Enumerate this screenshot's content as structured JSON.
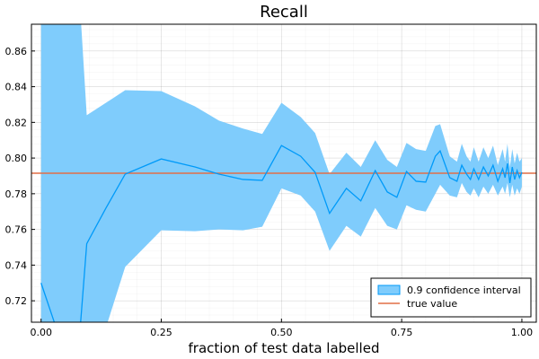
{
  "chart_data": {
    "type": "line",
    "title": "Recall",
    "xlabel": "fraction of test data labelled",
    "ylabel": "",
    "xlim": [
      -0.02,
      1.03
    ],
    "ylim": [
      0.708,
      0.875
    ],
    "xticks": [
      0.0,
      0.25,
      0.5,
      0.75,
      1.0
    ],
    "xtick_labels": [
      "0.00",
      "0.25",
      "0.50",
      "0.75",
      "1.00"
    ],
    "yticks": [
      0.72,
      0.74,
      0.76,
      0.78,
      0.8,
      0.82,
      0.84,
      0.86
    ],
    "ytick_labels": [
      "0.72",
      "0.74",
      "0.76",
      "0.78",
      "0.80",
      "0.82",
      "0.84",
      "0.86"
    ],
    "grid": true,
    "legend_position": "bottom-right",
    "series": [
      {
        "name": "0.9 confidence interval",
        "kind": "line_with_band",
        "color": "#009AF9",
        "band_color": "#7FCCFC",
        "x": [
          0.0,
          0.05,
          0.08,
          0.095,
          0.135,
          0.175,
          0.25,
          0.32,
          0.37,
          0.42,
          0.46,
          0.5,
          0.54,
          0.57,
          0.6,
          0.635,
          0.665,
          0.695,
          0.72,
          0.74,
          0.76,
          0.78,
          0.8,
          0.82,
          0.83,
          0.85,
          0.865,
          0.875,
          0.885,
          0.893,
          0.9,
          0.91,
          0.92,
          0.93,
          0.94,
          0.95,
          0.96,
          0.965,
          0.97,
          0.975,
          0.98,
          0.985,
          0.99,
          0.995,
          1.0
        ],
        "y": [
          0.73,
          0.69,
          0.7,
          0.752,
          0.772,
          0.791,
          0.7995,
          0.795,
          0.791,
          0.788,
          0.7875,
          0.807,
          0.801,
          0.792,
          0.769,
          0.783,
          0.776,
          0.793,
          0.781,
          0.778,
          0.7925,
          0.787,
          0.7865,
          0.801,
          0.804,
          0.789,
          0.787,
          0.796,
          0.791,
          0.788,
          0.794,
          0.788,
          0.795,
          0.79,
          0.796,
          0.787,
          0.794,
          0.789,
          0.797,
          0.786,
          0.795,
          0.788,
          0.793,
          0.789,
          0.792
        ],
        "lower": [
          0.7,
          0.69,
          0.69,
          0.69,
          0.705,
          0.739,
          0.7595,
          0.759,
          0.76,
          0.7595,
          0.7615,
          0.783,
          0.779,
          0.77,
          0.748,
          0.762,
          0.756,
          0.772,
          0.762,
          0.76,
          0.7735,
          0.771,
          0.77,
          0.78,
          0.785,
          0.779,
          0.778,
          0.786,
          0.781,
          0.779,
          0.783,
          0.778,
          0.784,
          0.78,
          0.785,
          0.779,
          0.784,
          0.78,
          0.786,
          0.778,
          0.785,
          0.779,
          0.783,
          0.78,
          0.784
        ],
        "upper": [
          0.89,
          0.89,
          0.89,
          0.824,
          0.831,
          0.838,
          0.8375,
          0.829,
          0.821,
          0.8165,
          0.8135,
          0.831,
          0.823,
          0.814,
          0.791,
          0.803,
          0.795,
          0.81,
          0.799,
          0.795,
          0.8085,
          0.805,
          0.804,
          0.818,
          0.819,
          0.801,
          0.798,
          0.808,
          0.801,
          0.798,
          0.806,
          0.798,
          0.806,
          0.8,
          0.807,
          0.796,
          0.805,
          0.798,
          0.808,
          0.795,
          0.805,
          0.797,
          0.803,
          0.798,
          0.8
        ]
      },
      {
        "name": "true value",
        "kind": "hline",
        "color": "#E26F46",
        "y": 0.7915
      }
    ]
  }
}
